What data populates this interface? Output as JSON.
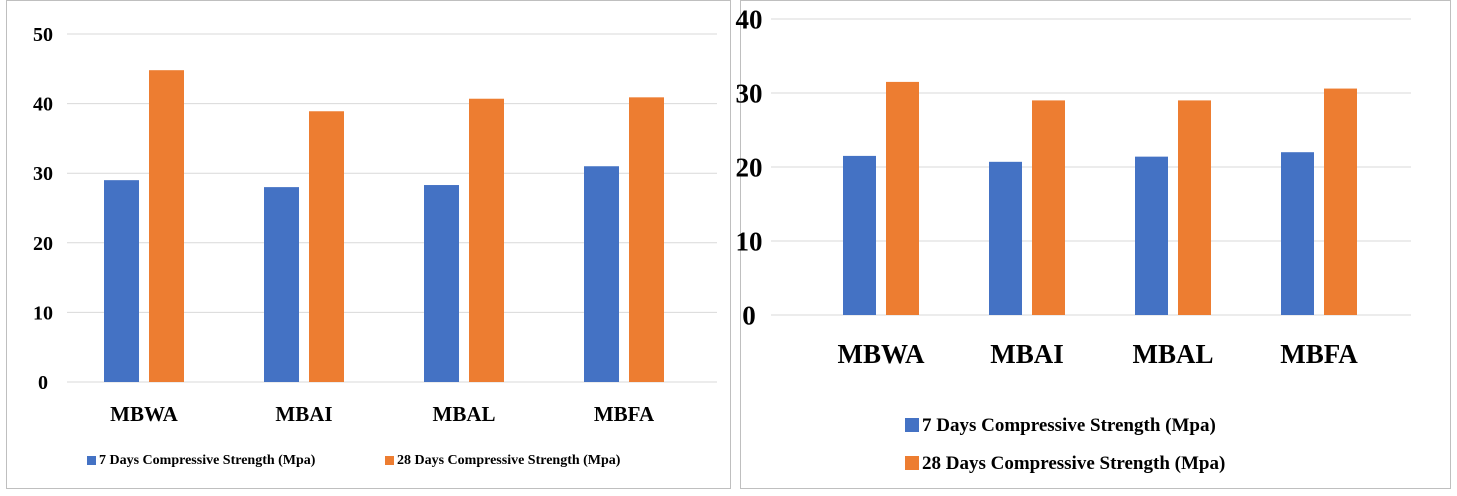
{
  "chart_data": [
    {
      "type": "bar",
      "categories": [
        "MBWA",
        "MBAI",
        "MBAL",
        "MBFA"
      ],
      "series": [
        {
          "name": "7 Days Compressive Strength (Mpa)",
          "values": [
            29,
            28,
            28.3,
            31
          ],
          "color": "#4472C4"
        },
        {
          "name": "28 Days Compressive Strength (Mpa)",
          "values": [
            44.8,
            38.9,
            40.7,
            40.9
          ],
          "color": "#ED7D31"
        }
      ],
      "ylim": [
        0,
        50
      ],
      "yticks": [
        0,
        10,
        20,
        30,
        40,
        50
      ],
      "grid": true,
      "legend": "bottom"
    },
    {
      "type": "bar",
      "categories": [
        "MBWA",
        "MBAI",
        "MBAL",
        "MBFA"
      ],
      "series": [
        {
          "name": "7 Days Compressive Strength (Mpa)",
          "values": [
            21.5,
            20.7,
            21.4,
            22
          ],
          "color": "#4472C4"
        },
        {
          "name": "28 Days Compressive Strength (Mpa)",
          "values": [
            31.5,
            29,
            29,
            30.6
          ],
          "color": "#ED7D31"
        }
      ],
      "ylim": [
        0,
        40
      ],
      "yticks": [
        0,
        10,
        20,
        30,
        40
      ],
      "grid": true,
      "legend": "bottom"
    }
  ]
}
